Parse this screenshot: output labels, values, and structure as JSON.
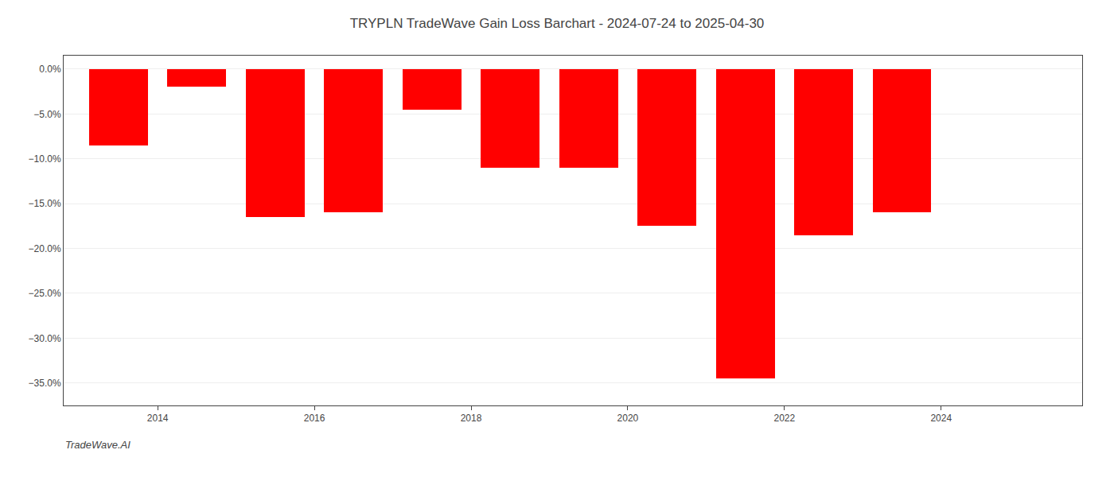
{
  "chart_data": {
    "type": "bar",
    "title": "TRYPLN TradeWave Gain Loss Barchart - 2024-07-24 to 2025-04-30",
    "x": [
      2013.5,
      2014.5,
      2015.5,
      2016.5,
      2017.5,
      2018.5,
      2019.5,
      2020.5,
      2021.5,
      2022.5,
      2023.5
    ],
    "values": [
      -8.5,
      -2.0,
      -16.5,
      -16.0,
      -4.5,
      -11.0,
      -11.0,
      -17.5,
      -34.5,
      -18.5,
      -16.0
    ],
    "color": "#ff0000",
    "xlim": [
      2012.8,
      2025.8
    ],
    "xticks": [
      2014,
      2016,
      2018,
      2020,
      2022,
      2024
    ],
    "ylim": [
      -37.5,
      1.5
    ],
    "yticks": [
      {
        "value": 0.0,
        "label": "0.0%"
      },
      {
        "value": -5.0,
        "label": "−5.0%"
      },
      {
        "value": -10.0,
        "label": "−10.0%"
      },
      {
        "value": -15.0,
        "label": "−15.0%"
      },
      {
        "value": -20.0,
        "label": "−20.0%"
      },
      {
        "value": -25.0,
        "label": "−25.0%"
      },
      {
        "value": -30.0,
        "label": "−30.0%"
      },
      {
        "value": -35.0,
        "label": "−35.0%"
      }
    ],
    "grid": true,
    "annotations": [
      "TradeWave.AI"
    ]
  }
}
